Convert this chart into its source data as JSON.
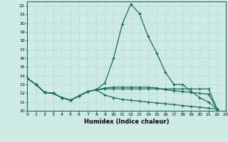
{
  "xlabel": "Humidex (Indice chaleur)",
  "xlim": [
    0,
    23
  ],
  "ylim": [
    10,
    22.5
  ],
  "xticks": [
    0,
    1,
    2,
    3,
    4,
    5,
    6,
    7,
    8,
    9,
    10,
    11,
    12,
    13,
    14,
    15,
    16,
    17,
    18,
    19,
    20,
    21,
    22,
    23
  ],
  "yticks": [
    10,
    11,
    12,
    13,
    14,
    15,
    16,
    17,
    18,
    19,
    20,
    21,
    22
  ],
  "background_color": "#ceeae4",
  "line_color": "#1a6b5a",
  "grid_color": "#b8ddd7",
  "series": [
    [
      13.7,
      13.0,
      12.1,
      12.0,
      11.5,
      11.2,
      11.7,
      12.2,
      12.4,
      13.2,
      16.0,
      19.9,
      22.2,
      21.1,
      18.5,
      16.6,
      14.4,
      13.0,
      13.0,
      12.2,
      11.5,
      11.0,
      10.2
    ],
    [
      13.7,
      13.0,
      12.1,
      12.0,
      11.5,
      11.2,
      11.7,
      12.2,
      12.4,
      12.5,
      12.5,
      12.5,
      12.5,
      12.5,
      12.5,
      12.5,
      12.5,
      12.5,
      12.5,
      12.5,
      12.5,
      12.5,
      10.2
    ],
    [
      13.7,
      13.0,
      12.1,
      12.0,
      11.5,
      11.2,
      11.7,
      12.2,
      12.4,
      11.8,
      11.5,
      11.3,
      11.2,
      11.1,
      11.0,
      10.9,
      10.8,
      10.7,
      10.6,
      10.5,
      10.4,
      10.3,
      10.2
    ],
    [
      13.7,
      13.0,
      12.1,
      12.0,
      11.5,
      11.2,
      11.7,
      12.2,
      12.4,
      12.6,
      12.7,
      12.7,
      12.7,
      12.7,
      12.7,
      12.6,
      12.4,
      12.3,
      12.2,
      12.1,
      12.0,
      11.9,
      10.2
    ]
  ]
}
